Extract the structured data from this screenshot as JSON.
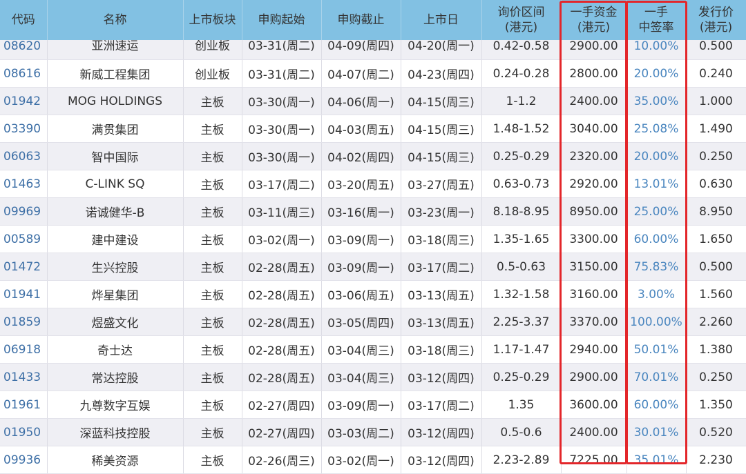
{
  "headers": {
    "code": "代码",
    "name": "名称",
    "board": "上市板块",
    "sub_start": "申购起始",
    "sub_end": "申购截止",
    "listing": "上市日",
    "price_range_1": "询价区间",
    "price_range_2": "(港元)",
    "lot_cost_1": "一手资金",
    "lot_cost_2": "(港元)",
    "win_rate_1": "一手",
    "win_rate_2": "中签率",
    "issue_price_1": "发行价",
    "issue_price_2": "(港元)"
  },
  "highlight_color": "#e3262a",
  "rows": [
    {
      "code": "08620",
      "name": "亚洲速运",
      "board": "创业板",
      "sub_start": "03-31(周二)",
      "sub_end": "04-09(周四)",
      "listing": "04-20(周一)",
      "price_range": "0.42-0.58",
      "lot_cost": "2900.00",
      "win_rate": "10.00%",
      "issue_price": "0.500"
    },
    {
      "code": "08616",
      "name": "新威工程集团",
      "board": "创业板",
      "sub_start": "03-31(周二)",
      "sub_end": "04-07(周二)",
      "listing": "04-23(周四)",
      "price_range": "0.24-0.28",
      "lot_cost": "2800.00",
      "win_rate": "20.00%",
      "issue_price": "0.240"
    },
    {
      "code": "01942",
      "name": "MOG HOLDINGS",
      "board": "主板",
      "sub_start": "03-30(周一)",
      "sub_end": "04-06(周一)",
      "listing": "04-15(周三)",
      "price_range": "1-1.2",
      "lot_cost": "2400.00",
      "win_rate": "35.00%",
      "issue_price": "1.000"
    },
    {
      "code": "03390",
      "name": "满贯集团",
      "board": "主板",
      "sub_start": "03-30(周一)",
      "sub_end": "04-03(周五)",
      "listing": "04-15(周三)",
      "price_range": "1.48-1.52",
      "lot_cost": "3040.00",
      "win_rate": "25.08%",
      "issue_price": "1.490"
    },
    {
      "code": "06063",
      "name": "智中国际",
      "board": "主板",
      "sub_start": "03-30(周一)",
      "sub_end": "04-02(周四)",
      "listing": "04-15(周三)",
      "price_range": "0.25-0.29",
      "lot_cost": "2320.00",
      "win_rate": "20.00%",
      "issue_price": "0.250"
    },
    {
      "code": "01463",
      "name": "C-LINK SQ",
      "board": "主板",
      "sub_start": "03-17(周二)",
      "sub_end": "03-20(周五)",
      "listing": "03-27(周五)",
      "price_range": "0.63-0.73",
      "lot_cost": "2920.00",
      "win_rate": "13.01%",
      "issue_price": "0.630"
    },
    {
      "code": "09969",
      "name": "诺诚健华-B",
      "board": "主板",
      "sub_start": "03-11(周三)",
      "sub_end": "03-16(周一)",
      "listing": "03-23(周一)",
      "price_range": "8.18-8.95",
      "lot_cost": "8950.00",
      "win_rate": "25.00%",
      "issue_price": "8.950"
    },
    {
      "code": "00589",
      "name": "建中建设",
      "board": "主板",
      "sub_start": "03-02(周一)",
      "sub_end": "03-09(周一)",
      "listing": "03-18(周三)",
      "price_range": "1.35-1.65",
      "lot_cost": "3300.00",
      "win_rate": "60.00%",
      "issue_price": "1.650"
    },
    {
      "code": "01472",
      "name": "生兴控股",
      "board": "主板",
      "sub_start": "02-28(周五)",
      "sub_end": "03-09(周一)",
      "listing": "03-17(周二)",
      "price_range": "0.5-0.63",
      "lot_cost": "3150.00",
      "win_rate": "75.83%",
      "issue_price": "0.500"
    },
    {
      "code": "01941",
      "name": "烨星集团",
      "board": "主板",
      "sub_start": "02-28(周五)",
      "sub_end": "03-06(周五)",
      "listing": "03-13(周五)",
      "price_range": "1.32-1.58",
      "lot_cost": "3160.00",
      "win_rate": "3.00%",
      "issue_price": "1.560"
    },
    {
      "code": "01859",
      "name": "煜盛文化",
      "board": "主板",
      "sub_start": "02-28(周五)",
      "sub_end": "03-05(周四)",
      "listing": "03-13(周五)",
      "price_range": "2.25-3.37",
      "lot_cost": "3370.00",
      "win_rate": "100.00%",
      "issue_price": "2.260"
    },
    {
      "code": "06918",
      "name": "奇士达",
      "board": "主板",
      "sub_start": "02-28(周五)",
      "sub_end": "03-04(周三)",
      "listing": "03-18(周三)",
      "price_range": "1.17-1.47",
      "lot_cost": "2940.00",
      "win_rate": "50.01%",
      "issue_price": "1.380"
    },
    {
      "code": "01433",
      "name": "常达控股",
      "board": "主板",
      "sub_start": "02-28(周五)",
      "sub_end": "03-04(周三)",
      "listing": "03-12(周四)",
      "price_range": "0.25-0.29",
      "lot_cost": "2900.00",
      "win_rate": "70.01%",
      "issue_price": "0.250"
    },
    {
      "code": "01961",
      "name": "九尊数字互娱",
      "board": "主板",
      "sub_start": "02-27(周四)",
      "sub_end": "03-09(周一)",
      "listing": "03-17(周二)",
      "price_range": "1.35",
      "lot_cost": "3600.00",
      "win_rate": "60.00%",
      "issue_price": "1.350"
    },
    {
      "code": "01950",
      "name": "深蓝科技控股",
      "board": "主板",
      "sub_start": "02-27(周四)",
      "sub_end": "03-03(周二)",
      "listing": "03-12(周四)",
      "price_range": "0.5-0.6",
      "lot_cost": "2400.00",
      "win_rate": "30.01%",
      "issue_price": "0.520"
    },
    {
      "code": "09936",
      "name": "稀美资源",
      "board": "主板",
      "sub_start": "02-26(周三)",
      "sub_end": "03-02(周一)",
      "listing": "03-12(周四)",
      "price_range": "2.23-2.89",
      "lot_cost": "7225.00",
      "win_rate": "35.01%",
      "issue_price": "2.230"
    }
  ]
}
